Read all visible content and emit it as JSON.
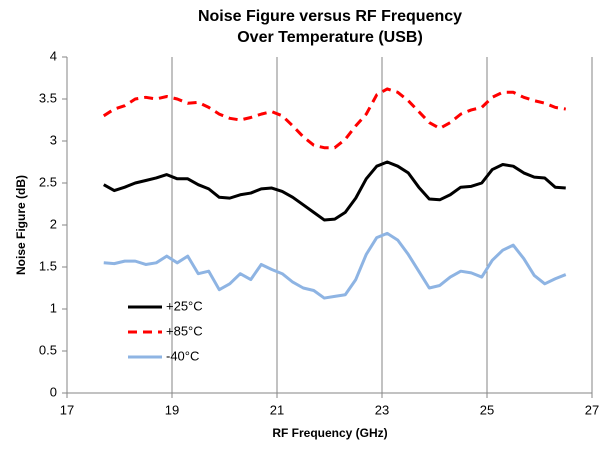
{
  "chart_data": {
    "type": "line",
    "title": [
      "Noise Figure versus RF Frequency",
      "Over Temperature (USB)"
    ],
    "x_label": "RF Frequency (GHz)",
    "y_label": "Noise Figure (dB)",
    "x": [
      17.7,
      17.9,
      18.1,
      18.3,
      18.5,
      18.7,
      18.9,
      19.1,
      19.3,
      19.5,
      19.7,
      19.9,
      20.1,
      20.3,
      20.5,
      20.7,
      20.9,
      21.1,
      21.3,
      21.5,
      21.7,
      21.9,
      22.1,
      22.3,
      22.5,
      22.7,
      22.9,
      23.1,
      23.3,
      23.5,
      23.7,
      23.9,
      24.1,
      24.3,
      24.5,
      24.7,
      24.9,
      25.1,
      25.3,
      25.5,
      25.7,
      25.9,
      26.1,
      26.3,
      26.5
    ],
    "series": [
      {
        "name": "+25°C",
        "color": "#000000",
        "dashed": false,
        "values": [
          2.48,
          2.41,
          2.45,
          2.5,
          2.53,
          2.56,
          2.6,
          2.55,
          2.55,
          2.48,
          2.43,
          2.33,
          2.32,
          2.36,
          2.38,
          2.43,
          2.44,
          2.4,
          2.33,
          2.24,
          2.15,
          2.06,
          2.07,
          2.15,
          2.32,
          2.55,
          2.7,
          2.75,
          2.7,
          2.62,
          2.45,
          2.31,
          2.3,
          2.36,
          2.45,
          2.46,
          2.5,
          2.66,
          2.72,
          2.7,
          2.62,
          2.57,
          2.56,
          2.45,
          2.44
        ]
      },
      {
        "name": "+85°C",
        "color": "#ff0000",
        "dashed": true,
        "values": [
          3.3,
          3.38,
          3.42,
          3.5,
          3.52,
          3.5,
          3.53,
          3.5,
          3.45,
          3.46,
          3.4,
          3.32,
          3.27,
          3.25,
          3.28,
          3.32,
          3.35,
          3.3,
          3.18,
          3.05,
          2.95,
          2.92,
          2.92,
          3.02,
          3.18,
          3.32,
          3.55,
          3.62,
          3.58,
          3.48,
          3.35,
          3.22,
          3.15,
          3.22,
          3.32,
          3.37,
          3.4,
          3.52,
          3.58,
          3.58,
          3.52,
          3.48,
          3.45,
          3.4,
          3.38
        ]
      },
      {
        "name": "-40°C",
        "color": "#8eb4e3",
        "dashed": false,
        "values": [
          1.55,
          1.54,
          1.57,
          1.57,
          1.53,
          1.55,
          1.63,
          1.55,
          1.63,
          1.42,
          1.45,
          1.23,
          1.3,
          1.42,
          1.35,
          1.53,
          1.47,
          1.42,
          1.32,
          1.25,
          1.22,
          1.13,
          1.15,
          1.17,
          1.35,
          1.65,
          1.85,
          1.9,
          1.82,
          1.65,
          1.45,
          1.25,
          1.28,
          1.38,
          1.45,
          1.43,
          1.38,
          1.58,
          1.7,
          1.76,
          1.6,
          1.4,
          1.3,
          1.36,
          1.41
        ]
      }
    ],
    "xlim": [
      17,
      27
    ],
    "xticks": [
      17,
      19,
      21,
      23,
      25,
      27
    ],
    "ylim": [
      0,
      4
    ],
    "yticks": [
      0,
      0.5,
      1,
      1.5,
      2,
      2.5,
      3,
      3.5,
      4
    ],
    "grid": "x",
    "legend": "lower left"
  }
}
